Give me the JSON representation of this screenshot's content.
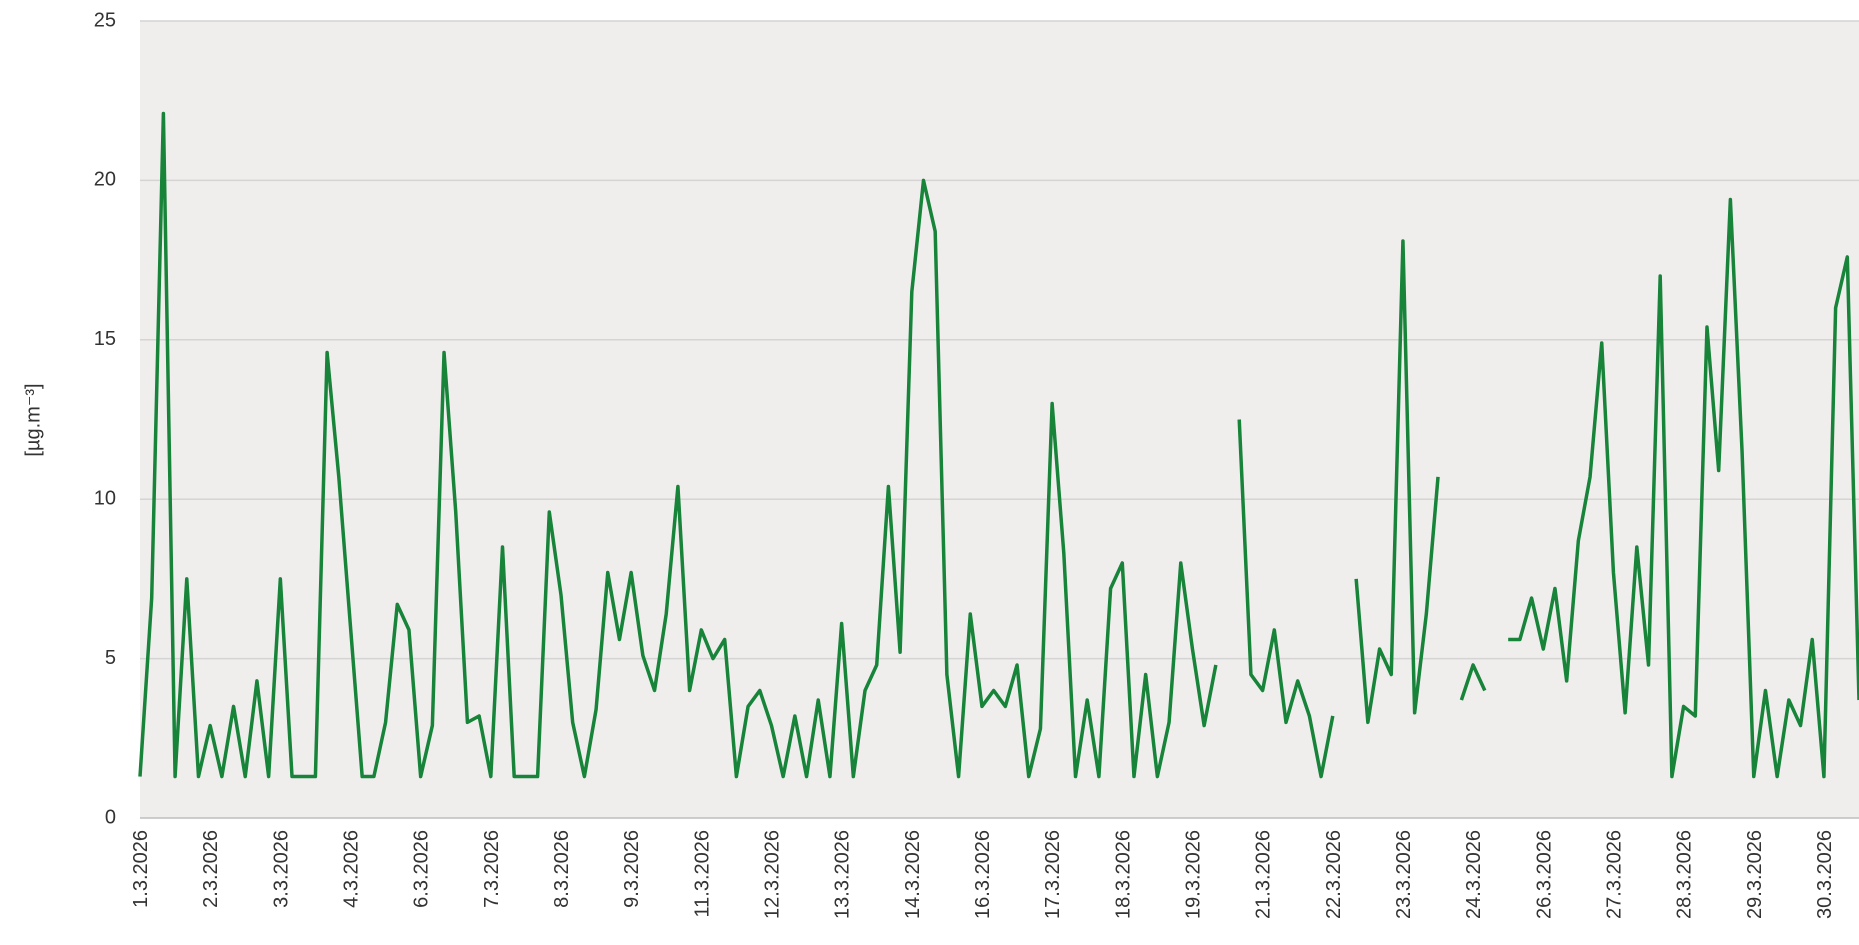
{
  "chart_data": {
    "type": "line",
    "y_label": "[µg.m⁻³]",
    "color": "#17843a",
    "grid": true,
    "ylim": [
      0,
      25
    ],
    "yticks": [
      0,
      5,
      10,
      15,
      20,
      25
    ],
    "categories": [
      "1.3.2026",
      null,
      null,
      null,
      null,
      null,
      "2.3.2026",
      null,
      null,
      null,
      null,
      null,
      "3.3.2026",
      null,
      null,
      null,
      null,
      null,
      "4.3.2026",
      null,
      null,
      null,
      null,
      null,
      "6.3.2026",
      null,
      null,
      null,
      null,
      null,
      "7.3.2026",
      null,
      null,
      null,
      null,
      null,
      "8.3.2026",
      null,
      null,
      null,
      null,
      null,
      "9.3.2026",
      null,
      null,
      null,
      null,
      null,
      "11.3.2026",
      null,
      null,
      null,
      null,
      null,
      "12.3.2026",
      null,
      null,
      null,
      null,
      null,
      "13.3.2026",
      null,
      null,
      null,
      null,
      null,
      "14.3.2026",
      null,
      null,
      null,
      null,
      null,
      "16.3.2026",
      null,
      null,
      null,
      null,
      null,
      "17.3.2026",
      null,
      null,
      null,
      null,
      null,
      "18.3.2026",
      null,
      null,
      null,
      null,
      null,
      "19.3.2026",
      null,
      null,
      null,
      null,
      null,
      "21.3.2026",
      null,
      null,
      null,
      null,
      null,
      "22.3.2026",
      null,
      null,
      null,
      null,
      null,
      "23.3.2026",
      null,
      null,
      null,
      null,
      null,
      "24.3.2026",
      null,
      null,
      null,
      null,
      null,
      "26.3.2026",
      null,
      null,
      null,
      null,
      null,
      "27.3.2026",
      null,
      null,
      null,
      null,
      null,
      "28.3.2026",
      null,
      null,
      null,
      null,
      null,
      "29.3.2026",
      null,
      null,
      null,
      null,
      null,
      "30.3.2026",
      null,
      null,
      null
    ],
    "values": [
      1.3,
      6.9,
      22.1,
      1.3,
      7.5,
      1.3,
      2.9,
      1.3,
      3.5,
      1.3,
      4.3,
      1.3,
      7.5,
      1.3,
      1.3,
      1.3,
      14.6,
      10.7,
      6.0,
      1.3,
      1.3,
      3.0,
      6.7,
      5.9,
      1.3,
      2.9,
      14.6,
      9.6,
      3.0,
      3.2,
      1.3,
      8.5,
      1.3,
      1.3,
      1.3,
      9.6,
      7.0,
      3.0,
      1.3,
      3.4,
      7.7,
      5.6,
      7.7,
      5.1,
      4.0,
      6.4,
      10.4,
      4.0,
      5.9,
      5.0,
      5.6,
      1.3,
      3.5,
      4.0,
      2.9,
      1.3,
      3.2,
      1.3,
      3.7,
      1.3,
      6.1,
      1.3,
      4.0,
      4.8,
      10.4,
      5.2,
      16.5,
      20.0,
      18.4,
      4.5,
      1.3,
      6.4,
      3.5,
      4.0,
      3.5,
      4.8,
      1.3,
      2.8,
      13.0,
      8.3,
      1.3,
      3.7,
      1.3,
      7.2,
      8.0,
      1.3,
      4.5,
      1.3,
      3.0,
      8.0,
      5.3,
      2.9,
      4.8,
      null,
      12.5,
      4.5,
      4.0,
      5.9,
      3.0,
      4.3,
      3.2,
      1.3,
      3.2,
      null,
      7.5,
      3.0,
      5.3,
      4.5,
      18.1,
      3.3,
      6.4,
      10.7,
      null,
      3.7,
      4.8,
      4.0,
      null,
      5.6,
      5.6,
      6.9,
      5.3,
      7.2,
      4.3,
      8.7,
      10.7,
      14.9,
      7.7,
      3.3,
      8.5,
      4.8,
      17.0,
      1.3,
      3.5,
      3.2,
      15.4,
      10.9,
      19.4,
      11.5,
      1.3,
      4.0,
      1.3,
      3.7,
      2.9,
      5.6,
      1.3,
      16.0,
      17.6,
      3.7
    ]
  }
}
